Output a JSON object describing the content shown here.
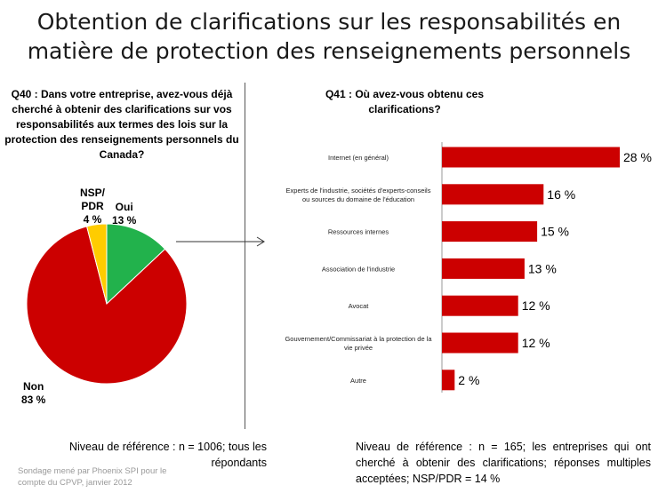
{
  "title_line1": "Obtention de clarifications sur les responsabilités en",
  "title_line2": "matière de protection des renseignements personnels",
  "q40": "Q40 : Dans votre entreprise, avez-vous déjà cherché à obtenir des clarifications sur vos responsabilités aux termes des lois sur la protection des renseignements personnels du Canada?",
  "q41": "Q41 : Où avez-vous obtenu ces clarifications?",
  "base_left": "Niveau de référence  : n = 1006; tous les répondants",
  "base_right": "Niveau de référence  : n = 165; les entreprises  qui ont cherché à obtenir des clarifications; réponses multiples acceptées;  NSP/PDR = 14 %",
  "source": "Sondage mené par Phoenix SPI pour le compte du CPVP, janvier 2012",
  "colors": {
    "red": "#cc0000",
    "green": "#22b24c",
    "yellow": "#ffcc00"
  },
  "chart_data": [
    {
      "type": "pie",
      "slices": [
        {
          "label": "Oui",
          "value": 13,
          "value_label": "13 %",
          "color": "#22b24c"
        },
        {
          "label": "Non",
          "value": 83,
          "value_label": "83 %",
          "color": "#cc0000"
        },
        {
          "label": "NSP/ PDR",
          "value": 4,
          "value_label": "4 %",
          "color": "#ffcc00"
        }
      ]
    },
    {
      "type": "bar",
      "orientation": "horizontal",
      "categories": [
        "Internet (en général)",
        "Experts de l'industrie, sociétés d'experts-conseils ou sources du domaine de l'éducation",
        "Ressources internes",
        "Association de l'industrie",
        "Avocat",
        "Gouvernement/Commissariat à la protection de la vie privée",
        "Autre"
      ],
      "category_lines": [
        [
          "Internet (en général)"
        ],
        [
          "Experts de l'industrie, sociétés d'experts-conseils",
          "ou sources du domaine de l'éducation"
        ],
        [
          "Ressources internes"
        ],
        [
          "Association de l'industrie"
        ],
        [
          "Avocat"
        ],
        [
          "Gouvernement/Commissariat à la protection de la",
          "vie privée"
        ],
        [
          "Autre"
        ]
      ],
      "values": [
        28,
        16,
        15,
        13,
        12,
        12,
        2
      ],
      "value_labels": [
        "28 %",
        "16 %",
        "15 %",
        "13 %",
        "12 %",
        "12 %",
        "2 %"
      ],
      "xlim": [
        0,
        28
      ],
      "color": "#cc0000"
    }
  ]
}
